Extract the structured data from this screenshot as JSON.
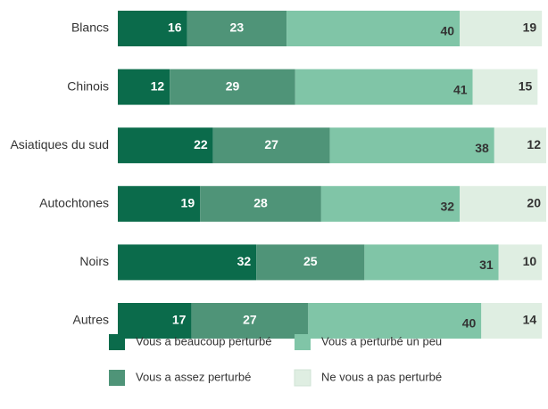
{
  "chart_data": {
    "type": "stacked-bar-horizontal",
    "categories": [
      "Blancs",
      "Chinois",
      "Asiatiques du sud",
      "Autochtones",
      "Noirs",
      "Autres"
    ],
    "series": [
      {
        "name": "Vous a beaucoup perturbé",
        "color": "#0b6b4b",
        "values": [
          16,
          12,
          22,
          19,
          32,
          17
        ]
      },
      {
        "name": "Vous a assez perturbé",
        "color": "#4f9478",
        "values": [
          23,
          29,
          27,
          28,
          25,
          27
        ]
      },
      {
        "name": "Vous a perturbé un peu",
        "color": "#80c5a7",
        "values": [
          40,
          41,
          38,
          32,
          31,
          40
        ]
      },
      {
        "name": "Ne vous a pas perturbé",
        "color": "#dfeee2",
        "values": [
          19,
          15,
          12,
          20,
          10,
          14
        ]
      }
    ],
    "xlim": [
      0,
      99
    ]
  }
}
